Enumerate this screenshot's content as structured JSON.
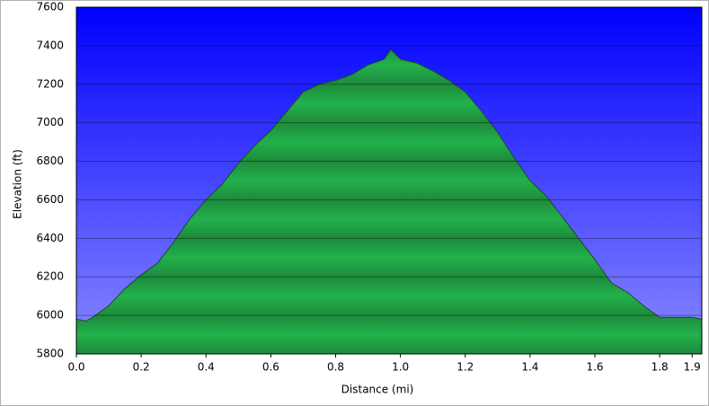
{
  "chart_data": {
    "type": "area",
    "xlabel": "Distance    (mi)",
    "ylabel": "Elevation (ft)",
    "x": [
      0,
      0.03,
      0.05,
      0.1,
      0.15,
      0.2,
      0.25,
      0.3,
      0.35,
      0.4,
      0.45,
      0.5,
      0.55,
      0.6,
      0.65,
      0.7,
      0.75,
      0.8,
      0.85,
      0.9,
      0.95,
      0.97,
      1.0,
      1.05,
      1.1,
      1.15,
      1.2,
      1.25,
      1.3,
      1.35,
      1.4,
      1.45,
      1.5,
      1.55,
      1.6,
      1.65,
      1.7,
      1.75,
      1.8,
      1.85,
      1.9,
      1.93
    ],
    "series": [
      {
        "color": "#22b14c",
        "values": [
          5980,
          5970,
          5990,
          6050,
          6140,
          6210,
          6270,
          6380,
          6500,
          6600,
          6680,
          6790,
          6880,
          6960,
          7060,
          7160,
          7200,
          7220,
          7250,
          7300,
          7330,
          7380,
          7330,
          7310,
          7270,
          7220,
          7160,
          7060,
          6950,
          6820,
          6700,
          6620,
          6510,
          6400,
          6290,
          6170,
          6120,
          6050,
          5990,
          5990,
          5990,
          5980
        ]
      }
    ],
    "background": "#0000ff",
    "xlim": [
      0,
      1.93
    ],
    "ylim": [
      5800,
      7600
    ],
    "xticks": [
      {
        "value": 0,
        "label": "0.0"
      },
      0.2,
      0.4,
      0.6,
      0.8,
      {
        "value": 1,
        "label": "1.0"
      },
      1.2,
      1.4,
      1.6,
      1.8,
      1.9
    ],
    "yticks": [
      5800,
      6000,
      6200,
      6400,
      6600,
      6800,
      7000,
      7200,
      7400,
      7600
    ],
    "grid": true
  }
}
